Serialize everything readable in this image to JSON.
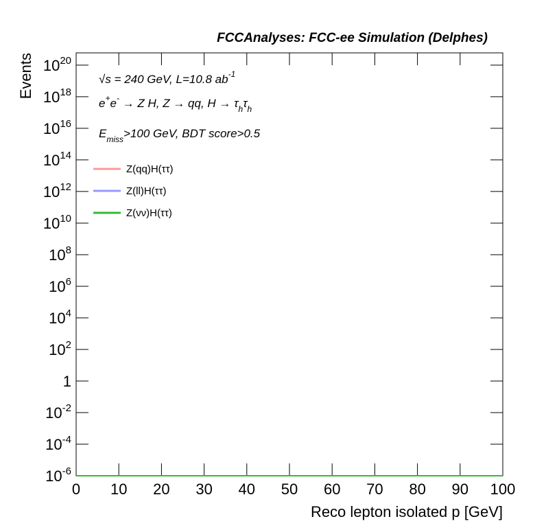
{
  "chart_data": {
    "type": "line",
    "title": "FCCAnalyses: FCC-ee Simulation (Delphes)",
    "x_label": "Reco lepton isolated p [GeV]",
    "y_label": "Events",
    "annotations": [
      [
        {
          "text": "√s = 240 GeV, L=10.8 ab"
        },
        {
          "text": "-1",
          "shift": "sup"
        }
      ],
      [
        {
          "text": "e"
        },
        {
          "text": "+",
          "shift": "sup"
        },
        {
          "text": "e"
        },
        {
          "text": "-",
          "shift": "sup"
        },
        {
          "text": " → Z H, Z  → qq, H  → τ"
        },
        {
          "text": "h",
          "shift": "sub"
        },
        {
          "text": "τ"
        },
        {
          "text": "h",
          "shift": "sub"
        }
      ],
      [
        {
          "text": "E"
        },
        {
          "text": "miss",
          "shift": "sub"
        },
        {
          "text": ">100 GeV, BDT score>0.5"
        }
      ]
    ],
    "x": [
      0,
      100
    ],
    "series": [
      {
        "name": "Z(qq)H(ττ)",
        "color": "#ff9999",
        "values": [
          1e-06,
          1e-06
        ]
      },
      {
        "name": "Z(ll)H(ττ)",
        "color": "#9999ff",
        "values": [
          1e-06,
          1e-06
        ]
      },
      {
        "name": "Z(νν)H(ττ)",
        "color": "#33bb33",
        "values": [
          1e-06,
          1e-06
        ]
      }
    ],
    "xlim": [
      0,
      100
    ],
    "xticks": [
      0,
      10,
      20,
      30,
      40,
      50,
      60,
      70,
      80,
      90,
      100
    ],
    "ylim": [
      1e-06,
      6e+20
    ],
    "log_y": true,
    "yticks": [
      {
        "value": 1e-06,
        "label": "10",
        "exponent": "-6"
      },
      {
        "value": 0.0001,
        "label": "10",
        "exponent": "-4"
      },
      {
        "value": 0.01,
        "label": "10",
        "exponent": "-2"
      },
      {
        "value": 1,
        "label": "1"
      },
      {
        "value": 100.0,
        "label": "10",
        "exponent": "2"
      },
      {
        "value": 10000.0,
        "label": "10",
        "exponent": "4"
      },
      {
        "value": 1000000.0,
        "label": "10",
        "exponent": "6"
      },
      {
        "value": 100000000.0,
        "label": "10",
        "exponent": "8"
      },
      {
        "value": 10000000000.0,
        "label": "10",
        "exponent": "10"
      },
      {
        "value": 1000000000000.0,
        "label": "10",
        "exponent": "12"
      },
      {
        "value": 100000000000000.0,
        "label": "10",
        "exponent": "14"
      },
      {
        "value": 1e+16,
        "label": "10",
        "exponent": "16"
      },
      {
        "value": 1e+18,
        "label": "10",
        "exponent": "18"
      },
      {
        "value": 1e+20,
        "label": "10",
        "exponent": "20"
      }
    ],
    "grid": false,
    "legend_position": "top-left"
  }
}
